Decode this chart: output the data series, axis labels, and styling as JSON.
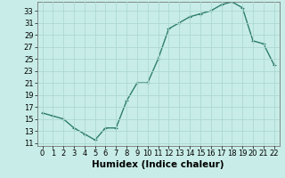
{
  "x": [
    0,
    1,
    2,
    3,
    4,
    5,
    6,
    7,
    8,
    9,
    10,
    11,
    12,
    13,
    14,
    15,
    16,
    17,
    18,
    19,
    20,
    21,
    22
  ],
  "y": [
    16,
    15.5,
    15,
    13.5,
    12.5,
    11.5,
    13.5,
    13.5,
    18,
    21,
    21,
    25,
    30,
    31,
    32,
    32.5,
    33,
    34,
    34.5,
    33.5,
    28,
    27.5,
    24
  ],
  "line_color": "#2e7d6e",
  "marker": "+",
  "marker_size": 3,
  "bg_color": "#c8ede8",
  "grid_color": "#aed8d2",
  "xlabel": "Humidex (Indice chaleur)",
  "ylim": [
    10.5,
    34.5
  ],
  "xlim": [
    -0.5,
    22.5
  ],
  "yticks": [
    11,
    13,
    15,
    17,
    19,
    21,
    23,
    25,
    27,
    29,
    31,
    33
  ],
  "xticks": [
    0,
    1,
    2,
    3,
    4,
    5,
    6,
    7,
    8,
    9,
    10,
    11,
    12,
    13,
    14,
    15,
    16,
    17,
    18,
    19,
    20,
    21,
    22
  ],
  "tick_label_size": 6,
  "xlabel_size": 7.5,
  "line_width": 1.0
}
